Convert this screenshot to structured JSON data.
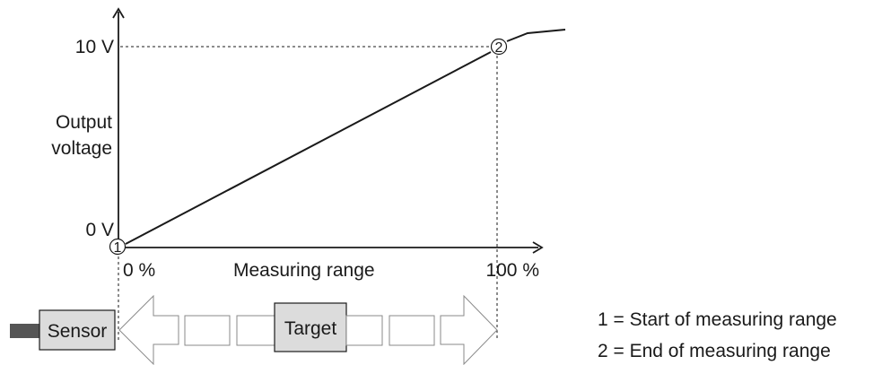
{
  "y_axis": {
    "label_line1": "Output",
    "label_line2": "voltage",
    "tick_top": "10 V",
    "tick_bottom": "0 V"
  },
  "x_axis": {
    "label": "Measuring range",
    "tick_left": "0 %",
    "tick_right": "100 %"
  },
  "markers": {
    "start": "1",
    "end": "2"
  },
  "components": {
    "sensor": "Sensor",
    "target": "Target"
  },
  "legend": [
    "1 = Start of measuring range",
    "2 = End of measuring range"
  ],
  "colors": {
    "ink": "#1a1a1a",
    "sensor_body": "#dcdcdc",
    "sensor_cable": "#555555",
    "outline": "#8a8a8a"
  }
}
